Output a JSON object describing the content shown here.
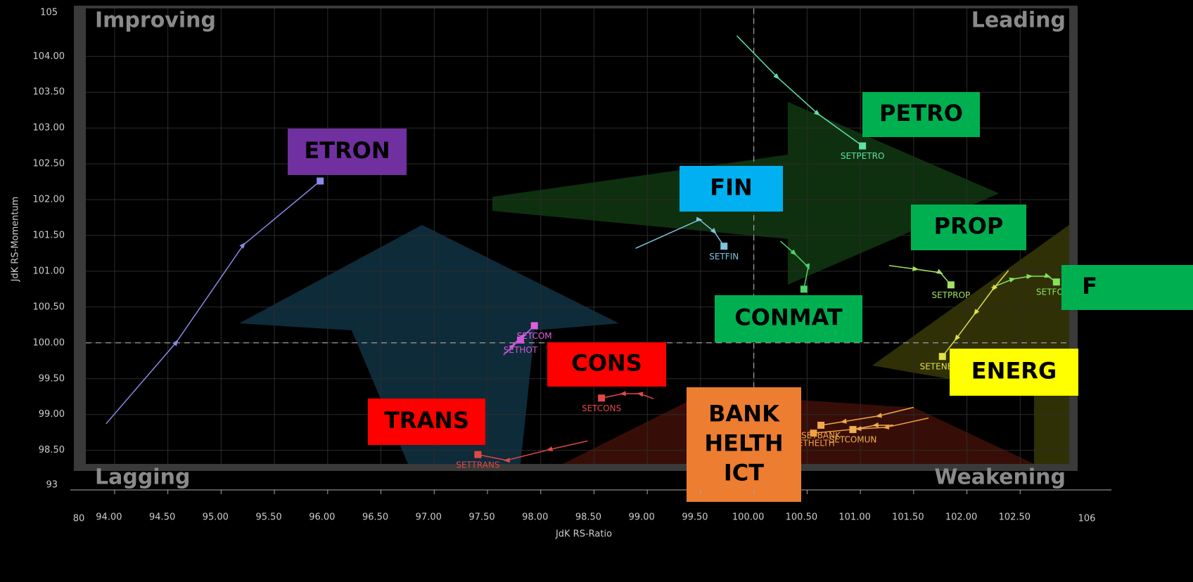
{
  "chart_data": {
    "type": "scatter",
    "x_label": "JdK RS-Ratio",
    "y_label": "JdK RS-Momentum",
    "quadrants": [
      "Improving",
      "Leading",
      "Lagging",
      "Weakening"
    ],
    "x_break_labels": [
      80,
      106
    ],
    "y_break_labels": [
      105,
      93
    ],
    "xlim": [
      93.73,
      102.96
    ],
    "ylim": [
      98.31,
      104.67
    ],
    "xticks": [
      {
        "value": 94,
        "label": "94.00"
      },
      {
        "value": 94.5,
        "label": "94.50"
      },
      {
        "value": 95,
        "label": "95.00"
      },
      {
        "value": 95.5,
        "label": "95.50"
      },
      {
        "value": 96,
        "label": "96.00"
      },
      {
        "value": 96.5,
        "label": "96.50"
      },
      {
        "value": 97,
        "label": "97.00"
      },
      {
        "value": 97.5,
        "label": "97.50"
      },
      {
        "value": 98,
        "label": "98.00"
      },
      {
        "value": 98.5,
        "label": "98.50"
      },
      {
        "value": 99,
        "label": "99.00"
      },
      {
        "value": 99.5,
        "label": "99.50"
      },
      {
        "value": 100,
        "label": "100.00"
      },
      {
        "value": 100.5,
        "label": "100.50"
      },
      {
        "value": 101,
        "label": "101.00"
      },
      {
        "value": 101.5,
        "label": "101.50"
      },
      {
        "value": 102,
        "label": "102.00"
      },
      {
        "value": 102.5,
        "label": "102.50"
      }
    ],
    "yticks": [
      {
        "value": 98.5,
        "label": "98.50"
      },
      {
        "value": 99,
        "label": "99.00"
      },
      {
        "value": 99.5,
        "label": "99.50"
      },
      {
        "value": 100,
        "label": "100.00"
      },
      {
        "value": 100.5,
        "label": "100.50"
      },
      {
        "value": 101,
        "label": "101.00"
      },
      {
        "value": 101.5,
        "label": "101.50"
      },
      {
        "value": 102,
        "label": "102.00"
      },
      {
        "value": 102.5,
        "label": "102.50"
      },
      {
        "value": 103,
        "label": "103.00"
      },
      {
        "value": 103.5,
        "label": "103.50"
      },
      {
        "value": 104,
        "label": "104.00"
      }
    ],
    "grid": true,
    "reference_lines": {
      "x": 100,
      "y": 100
    },
    "series": [
      {
        "color": "#8a8ae8",
        "x": [
          93.92,
          94.58,
          95.21,
          95.93
        ],
        "values": [
          98.87,
          100.01,
          101.37,
          102.26
        ]
      },
      {
        "name": "SETPETRO",
        "color": "#5fe0a8",
        "x": [
          99.84,
          100.22,
          100.6,
          101.02
        ],
        "values": [
          104.29,
          103.71,
          103.2,
          102.75
        ]
      },
      {
        "name": "SETFIN",
        "color": "#7ec4dc",
        "x": [
          98.89,
          99.49,
          99.63,
          99.72
        ],
        "values": [
          101.32,
          101.72,
          101.55,
          101.35
        ]
      },
      {
        "color": "#4ed46a",
        "x": [
          100.25,
          100.38,
          100.51,
          100.47
        ],
        "values": [
          101.42,
          101.25,
          101.06,
          100.75
        ]
      },
      {
        "name": "SETPROP",
        "color": "#a4e060",
        "x": [
          101.27,
          101.52,
          101.75,
          101.85
        ],
        "values": [
          101.08,
          101.03,
          100.98,
          100.81
        ]
      },
      {
        "name": "SETFOOD",
        "color": "#86e060",
        "x": [
          102.23,
          102.43,
          102.59,
          102.76,
          102.84
        ],
        "values": [
          100.77,
          100.89,
          100.93,
          100.93,
          100.85
        ]
      },
      {
        "name": "SETENERG",
        "color": "#e0e048",
        "x": [
          102.39,
          102.25,
          102.08,
          101.9,
          101.77
        ],
        "values": [
          101.01,
          100.76,
          100.42,
          100.06,
          99.81
        ]
      },
      {
        "name": "SETCOM",
        "color": "#e060e0",
        "x": [
          97.74,
          97.84,
          97.94
        ],
        "values": [
          99.98,
          100.1,
          100.24
        ]
      },
      {
        "name": "SETHOT",
        "color": "#d058d8",
        "x": [
          97.65,
          97.74,
          97.81
        ],
        "values": [
          99.83,
          99.96,
          100.04
        ]
      },
      {
        "name": "SETCONS",
        "color": "#e04848",
        "x": [
          99.06,
          98.93,
          98.77,
          98.57
        ],
        "values": [
          99.22,
          99.29,
          99.29,
          99.23
        ]
      },
      {
        "name": "SETTRANS",
        "color": "#e04848",
        "x": [
          98.44,
          98.08,
          97.68,
          97.41
        ],
        "values": [
          98.63,
          98.51,
          98.36,
          98.44
        ]
      },
      {
        "name": "SETBANK",
        "color": "#f0a848",
        "x": [
          101.5,
          101.17,
          100.84,
          100.63
        ],
        "values": [
          99.1,
          98.98,
          98.9,
          98.85
        ]
      },
      {
        "name": "SETHELTH",
        "color": "#f0a040",
        "x": [
          101.64,
          101.24,
          100.98,
          100.56
        ],
        "values": [
          98.95,
          98.82,
          98.8,
          98.74
        ]
      },
      {
        "name": "SETCOMUN",
        "color": "#f0b050",
        "x": [
          101.31,
          101.14,
          100.93
        ],
        "values": [
          98.85,
          98.85,
          98.79
        ]
      }
    ],
    "annotations": [
      {
        "text": [
          "ETRON"
        ],
        "color": "#7030a0"
      },
      {
        "text": [
          "PETRO"
        ],
        "color": "#00b050"
      },
      {
        "text": [
          "FIN"
        ],
        "color": "#00b0f0"
      },
      {
        "text": [
          "PROP"
        ],
        "color": "#00b050"
      },
      {
        "text": [
          "F"
        ],
        "color": "#00b050"
      },
      {
        "text": [
          "CONMAT"
        ],
        "color": "#00b050"
      },
      {
        "text": [
          "ENERG"
        ],
        "color": "#ffff00"
      },
      {
        "text": [
          "CONS"
        ],
        "color": "#ff0000"
      },
      {
        "text": [
          "TRANS"
        ],
        "color": "#ff0000"
      },
      {
        "text": [
          "BANK",
          "HELTH",
          "ICT"
        ],
        "color": "#ed7d31"
      }
    ]
  }
}
